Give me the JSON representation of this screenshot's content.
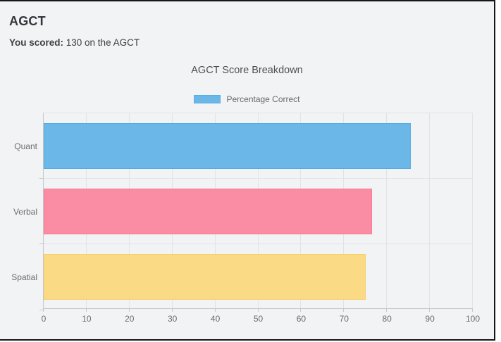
{
  "page": {
    "title": "AGCT",
    "score_bold": "You scored:",
    "score_rest": " 130 on the AGCT"
  },
  "chart_data": {
    "type": "bar",
    "orientation": "horizontal",
    "title": "AGCT Score Breakdown",
    "legend": {
      "label": "Percentage Correct",
      "position": "top",
      "swatch_color": "#6bb8e8"
    },
    "categories": [
      "Quant",
      "Verbal",
      "Spatial"
    ],
    "values": [
      85.5,
      76.5,
      75
    ],
    "bar_colors": [
      "#6bb8e8",
      "#fa8da3",
      "#fbda85"
    ],
    "bar_border_colors": [
      "#56ace2",
      "#f87c95",
      "#f7cf6d"
    ],
    "xlabel": "",
    "ylabel": "",
    "xlim": [
      0,
      100
    ],
    "x_ticks": [
      0,
      10,
      20,
      30,
      40,
      50,
      60,
      70,
      80,
      90,
      100
    ],
    "grid": true
  },
  "colors": {
    "page_background": "#f2f3f4",
    "frame_border": "#161616",
    "gridline": "#e2e3e6",
    "axis_line": "#c6c7ca",
    "text_primary": "#33373c",
    "text_axis": "#696d71"
  }
}
